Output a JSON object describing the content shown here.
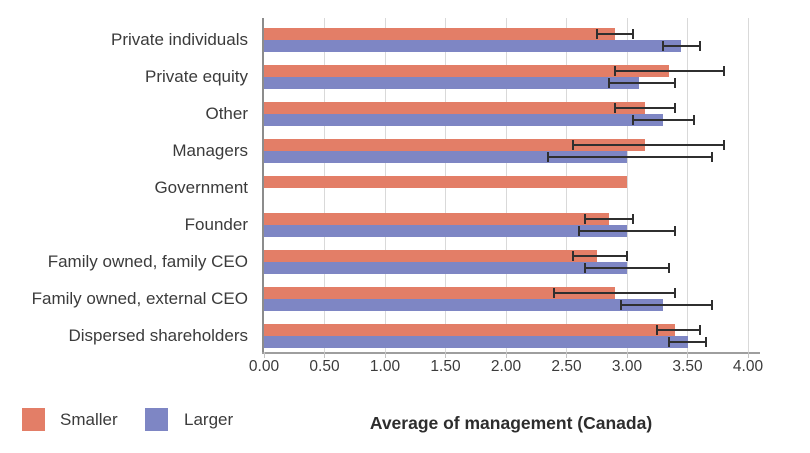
{
  "chart_data": {
    "type": "bar",
    "orientation": "horizontal",
    "title": "Average of management (Canada)",
    "xlabel": "Average of management (Canada)",
    "categories": [
      "Private individuals",
      "Private equity",
      "Other",
      "Managers",
      "Government",
      "Founder",
      "Family owned, family CEO",
      "Family owned, external CEO",
      "Dispersed shareholders"
    ],
    "series": [
      {
        "name": "Smaller",
        "color": "#e37e67",
        "values": [
          2.9,
          3.35,
          3.15,
          3.15,
          3.0,
          2.85,
          2.75,
          2.9,
          3.4
        ],
        "error_low": [
          2.75,
          2.9,
          2.9,
          2.55,
          null,
          2.65,
          2.55,
          2.4,
          3.25
        ],
        "error_high": [
          3.05,
          3.8,
          3.4,
          3.8,
          null,
          3.05,
          3.0,
          3.4,
          3.6
        ]
      },
      {
        "name": "Larger",
        "color": "#7e86c4",
        "values": [
          3.45,
          3.1,
          3.3,
          3.0,
          null,
          3.0,
          3.0,
          3.3,
          3.5
        ],
        "error_low": [
          3.3,
          2.85,
          3.05,
          2.35,
          null,
          2.6,
          2.65,
          2.95,
          3.35
        ],
        "error_high": [
          3.6,
          3.4,
          3.55,
          3.7,
          null,
          3.4,
          3.35,
          3.7,
          3.65
        ]
      }
    ],
    "x_ticks": [
      "0.00",
      "0.50",
      "1.00",
      "1.50",
      "2.00",
      "2.50",
      "3.00",
      "3.50",
      "4.00"
    ],
    "xlim": [
      0,
      4
    ],
    "grid": true,
    "error_bar_color": "#2f2f2f",
    "legend_position": "bottom-left"
  }
}
